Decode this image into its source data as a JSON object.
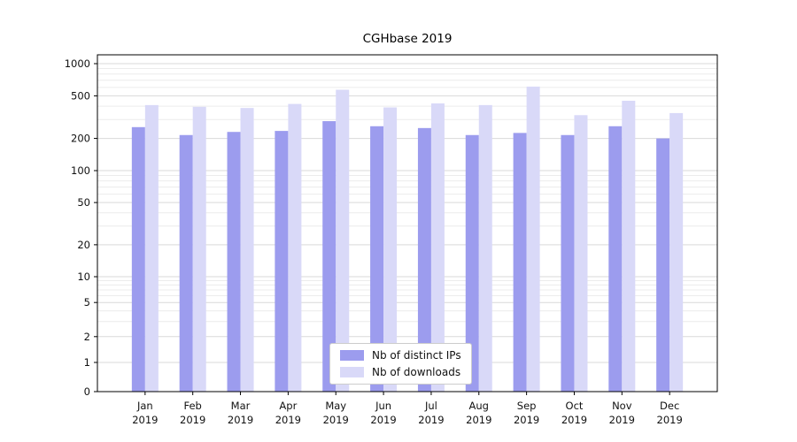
{
  "figure": {
    "title": "CGHbase 2019"
  },
  "chart_data": {
    "type": "bar",
    "title": "CGHbase 2019",
    "categories": [
      "Jan",
      "Feb",
      "Mar",
      "Apr",
      "May",
      "Jun",
      "Jul",
      "Aug",
      "Sep",
      "Oct",
      "Nov",
      "Dec"
    ],
    "year": "2019",
    "series": [
      {
        "name": "Nb of distinct IPs",
        "color": "#9c9cee",
        "values": [
          255,
          215,
          230,
          235,
          290,
          260,
          250,
          215,
          225,
          215,
          260,
          200
        ]
      },
      {
        "name": "Nb of downloads",
        "color": "#d9d9f8",
        "values": [
          410,
          395,
          385,
          420,
          570,
          390,
          425,
          410,
          610,
          330,
          450,
          345
        ]
      }
    ],
    "yticks": [
      0,
      1,
      2,
      5,
      10,
      20,
      50,
      100,
      200,
      500,
      1000
    ],
    "scale": "symlog",
    "ylim": [
      0,
      1000
    ],
    "grid": true,
    "legend_position": "lower center"
  }
}
